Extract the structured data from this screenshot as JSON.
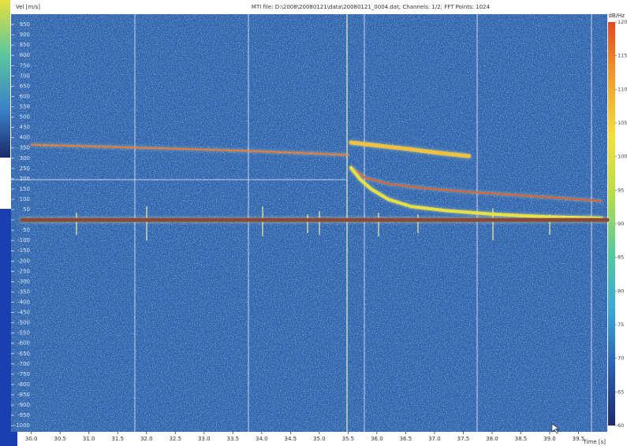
{
  "chart_data": {
    "type": "spectrogram",
    "title": "MTI file: D:\\2008\\20080121\\data\\20080121_0004.dat; Channels: 1/2; FFT Points: 1024",
    "y_label": "Vel [m/s]",
    "x_label": "Time [s]",
    "colorbar_label": "dB/Hz",
    "xlim": [
      29.84,
      40.0
    ],
    "ylim": [
      -1030,
      1000
    ],
    "xticks": [
      {
        "value": 30,
        "label": "30.0"
      },
      30.5,
      {
        "value": 31,
        "label": "31.0"
      },
      31.5,
      {
        "value": 32,
        "label": "32.0"
      },
      32.5,
      {
        "value": 33,
        "label": "33.0"
      },
      33.5,
      {
        "value": 34,
        "label": "34.0"
      },
      34.5,
      {
        "value": 35,
        "label": "35.0"
      },
      35.5,
      {
        "value": 36,
        "label": "36.0"
      },
      36.5,
      {
        "value": 37,
        "label": "37.0"
      },
      37.5,
      {
        "value": 38,
        "label": "38.0"
      },
      38.5,
      {
        "value": 39,
        "label": "39.0"
      },
      39.5
    ],
    "yticks": [
      950,
      900,
      850,
      800,
      750,
      700,
      650,
      600,
      550,
      500,
      450,
      400,
      350,
      300,
      250,
      200,
      150,
      100,
      50,
      0,
      -50,
      -100,
      -150,
      -200,
      -250,
      -300,
      -350,
      -400,
      -450,
      -500,
      -550,
      -600,
      -650,
      -700,
      -750,
      -800,
      -850,
      -900,
      -950,
      -1000
    ],
    "clim": [
      60,
      120
    ],
    "cticks": [
      120,
      115,
      110,
      105,
      100,
      95,
      90,
      85,
      80,
      75,
      70,
      65,
      60
    ],
    "colormap": [
      "#1b2a6b",
      "#2b5fb0",
      "#3aa6d8",
      "#57c9a0",
      "#b8dc4a",
      "#f0e040",
      "#f0a030",
      "#e04a20"
    ],
    "background": "#2d63ad",
    "traces": [
      {
        "color": "#f07a30",
        "width": 2,
        "x": [
          30.0,
          31.0,
          32.0,
          33.0,
          34.0,
          35.0,
          35.5
        ],
        "values": [
          365,
          358,
          350,
          342,
          333,
          322,
          315
        ]
      },
      {
        "color": "#f0c040",
        "width": 5,
        "x": [
          35.55,
          36.0,
          36.5,
          37.0,
          37.6
        ],
        "values": [
          376,
          362,
          346,
          328,
          310
        ]
      },
      {
        "color": "#e8602c",
        "width": 2,
        "x": [
          35.55,
          35.8,
          36.2,
          36.8,
          37.5,
          38.2,
          39.0,
          39.9
        ],
        "values": [
          254,
          205,
          175,
          155,
          138,
          125,
          110,
          92
        ]
      },
      {
        "color": "#e8e040",
        "width": 4,
        "x": [
          35.55,
          35.7,
          35.9,
          36.2,
          36.6,
          37.2,
          38.0,
          39.0,
          39.9
        ],
        "values": [
          254,
          200,
          150,
          100,
          65,
          45,
          28,
          15,
          8
        ]
      },
      {
        "color": "#8a4a3a",
        "width": 5,
        "x": [
          29.84,
          40.0
        ],
        "values": [
          0,
          0
        ]
      }
    ]
  }
}
